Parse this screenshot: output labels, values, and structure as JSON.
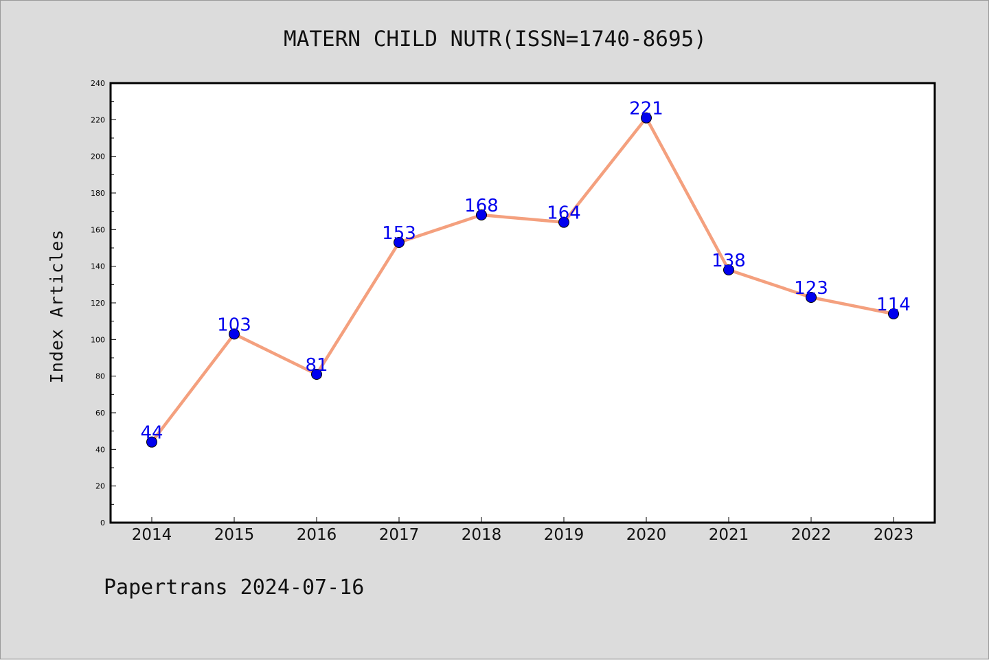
{
  "chart_data": {
    "type": "line",
    "title": "MATERN CHILD NUTR(ISSN=1740-8695)",
    "ylabel": "Index Articles",
    "xlabel": "",
    "categories": [
      "2014",
      "2015",
      "2016",
      "2017",
      "2018",
      "2019",
      "2020",
      "2021",
      "2022",
      "2023"
    ],
    "series": [
      {
        "values": [
          44,
          103,
          81,
          153,
          168,
          164,
          221,
          138,
          123,
          114
        ]
      }
    ],
    "ylim": [
      0,
      240
    ],
    "yticks": [
      0,
      20,
      40,
      60,
      80,
      100,
      120,
      140,
      160,
      180,
      200,
      220,
      240
    ],
    "data_labels": true,
    "grid": false,
    "colors": {
      "line": "#f4a07e",
      "marker": "#0000ee",
      "label": "#0000ee",
      "background": "#dcdcdc",
      "plot_bg": "#ffffff"
    }
  },
  "footer": {
    "text": "Papertrans 2024-07-16"
  }
}
